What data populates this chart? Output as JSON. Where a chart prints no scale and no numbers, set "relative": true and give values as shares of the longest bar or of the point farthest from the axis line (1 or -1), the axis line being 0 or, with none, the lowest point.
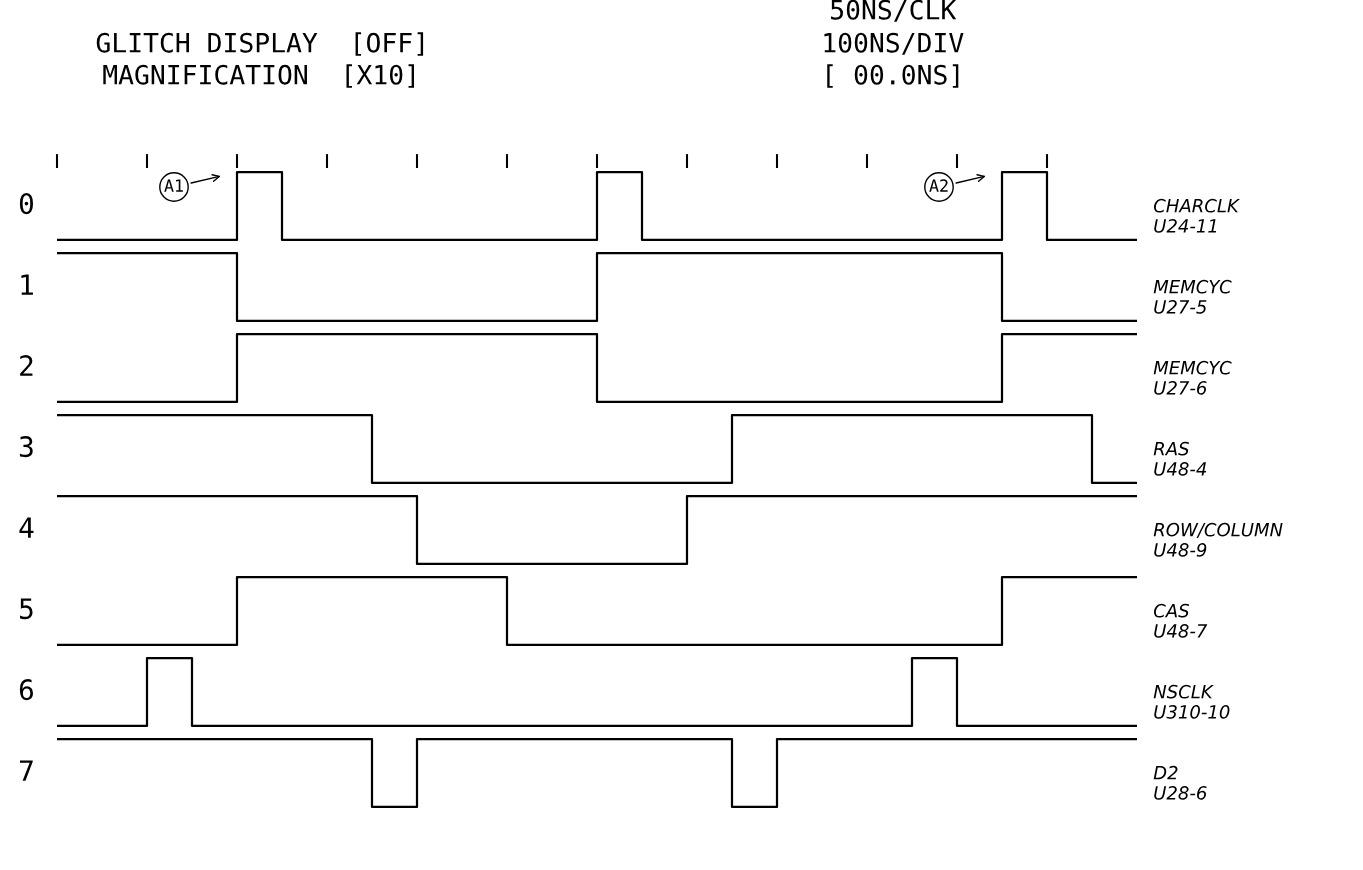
{
  "chart_data": [
    {
      "type": "step",
      "relative": true,
      "tick_labels": false,
      "title": "GLITCH DISPLAY  [OFF]",
      "subtitle": "MAGNIFICATION  [X10]",
      "annotations": [
        "50NS/CLK",
        "100NS/DIV",
        "[ 00.0NS]",
        "A1",
        "A2"
      ],
      "ylabel": "0",
      "y2label": "CHARCLK\nU24-11",
      "categories": [
        null,
        null,
        null,
        null,
        null,
        null,
        null,
        null,
        null,
        null,
        null,
        null,
        null,
        null,
        null,
        null,
        null,
        null,
        null,
        null,
        null,
        null,
        null,
        null,
        null
      ],
      "color": "#000000",
      "values": [
        0,
        0,
        0,
        0,
        1,
        0,
        0,
        0,
        0,
        0,
        0,
        0,
        1,
        0,
        0,
        0,
        0,
        0,
        0,
        0,
        0,
        1,
        0,
        0,
        0
      ]
    },
    {
      "type": "step",
      "relative": true,
      "ylabel": "1",
      "y2label": "MEMCYC\nU27-5",
      "categories": [
        null,
        null,
        null,
        null,
        null,
        null,
        null,
        null,
        null,
        null,
        null,
        null,
        null,
        null,
        null,
        null,
        null,
        null,
        null,
        null,
        null,
        null,
        null,
        null,
        null
      ],
      "color": "#000000",
      "values": [
        1,
        1,
        1,
        1,
        0,
        0,
        0,
        0,
        0,
        0,
        0,
        0,
        1,
        1,
        1,
        1,
        1,
        1,
        1,
        1,
        1,
        0,
        0,
        0,
        0
      ]
    },
    {
      "type": "step",
      "relative": true,
      "ylabel": "2",
      "y2label": "MEMCYC\nU27-6",
      "categories": [
        null,
        null,
        null,
        null,
        null,
        null,
        null,
        null,
        null,
        null,
        null,
        null,
        null,
        null,
        null,
        null,
        null,
        null,
        null,
        null,
        null,
        null,
        null,
        null,
        null
      ],
      "color": "#000000",
      "values": [
        0,
        0,
        0,
        0,
        1,
        1,
        1,
        1,
        1,
        1,
        1,
        1,
        0,
        0,
        0,
        0,
        0,
        0,
        0,
        0,
        0,
        1,
        1,
        1,
        1
      ]
    },
    {
      "type": "step",
      "relative": true,
      "ylabel": "3",
      "y2label": "RAS\nU48-4",
      "categories": [
        null,
        null,
        null,
        null,
        null,
        null,
        null,
        null,
        null,
        null,
        null,
        null,
        null,
        null,
        null,
        null,
        null,
        null,
        null,
        null,
        null,
        null,
        null,
        null,
        null
      ],
      "color": "#000000",
      "values": [
        1,
        1,
        1,
        1,
        1,
        1,
        1,
        0,
        0,
        0,
        0,
        0,
        0,
        0,
        0,
        1,
        1,
        1,
        1,
        1,
        1,
        1,
        1,
        0,
        0
      ]
    },
    {
      "type": "step",
      "relative": true,
      "ylabel": "4",
      "y2label": "ROW/COLUMN\nU48-9",
      "categories": [
        null,
        null,
        null,
        null,
        null,
        null,
        null,
        null,
        null,
        null,
        null,
        null,
        null,
        null,
        null,
        null,
        null,
        null,
        null,
        null,
        null,
        null,
        null,
        null,
        null
      ],
      "color": "#000000",
      "values": [
        1,
        1,
        1,
        1,
        1,
        1,
        1,
        1,
        0,
        0,
        0,
        0,
        0,
        0,
        1,
        1,
        1,
        1,
        1,
        1,
        1,
        1,
        1,
        1,
        1
      ]
    },
    {
      "type": "step",
      "relative": true,
      "ylabel": "5",
      "y2label": "CAS\nU48-7",
      "categories": [
        null,
        null,
        null,
        null,
        null,
        null,
        null,
        null,
        null,
        null,
        null,
        null,
        null,
        null,
        null,
        null,
        null,
        null,
        null,
        null,
        null,
        null,
        null,
        null,
        null
      ],
      "color": "#000000",
      "values": [
        0,
        0,
        0,
        0,
        1,
        1,
        1,
        1,
        1,
        1,
        0,
        0,
        0,
        0,
        0,
        0,
        0,
        0,
        0,
        0,
        0,
        1,
        1,
        1,
        1
      ]
    },
    {
      "type": "step",
      "relative": true,
      "ylabel": "6",
      "y2label": "NSCLK\nU310-10",
      "categories": [
        null,
        null,
        null,
        null,
        null,
        null,
        null,
        null,
        null,
        null,
        null,
        null,
        null,
        null,
        null,
        null,
        null,
        null,
        null,
        null,
        null,
        null,
        null,
        null,
        null
      ],
      "color": "#000000",
      "values": [
        0,
        0,
        1,
        0,
        0,
        0,
        0,
        0,
        0,
        0,
        0,
        0,
        0,
        0,
        0,
        0,
        0,
        0,
        0,
        1,
        0,
        0,
        0,
        0,
        0
      ]
    },
    {
      "type": "step",
      "relative": true,
      "ylabel": "7",
      "y2label": "D2\nU28-6",
      "categories": [
        null,
        null,
        null,
        null,
        null,
        null,
        null,
        null,
        null,
        null,
        null,
        null,
        null,
        null,
        null,
        null,
        null,
        null,
        null,
        null,
        null,
        null,
        null,
        null,
        null
      ],
      "color": "#000000",
      "values": [
        1,
        1,
        1,
        1,
        1,
        1,
        1,
        0,
        1,
        1,
        1,
        1,
        1,
        1,
        1,
        0,
        1,
        1,
        1,
        1,
        1,
        1,
        1,
        1,
        1
      ]
    }
  ]
}
